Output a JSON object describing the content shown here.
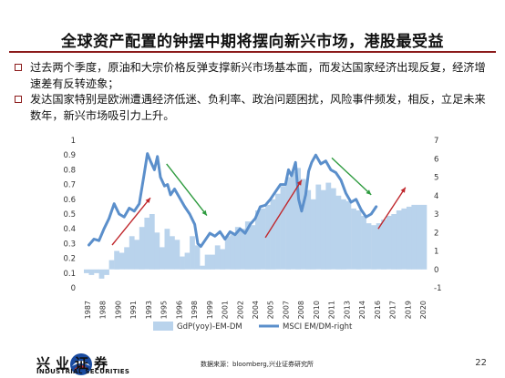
{
  "slide": {
    "title": "全球资产配置的钟摆中期将摆向新兴市场，港股最受益",
    "bullets": [
      "过去两个季度，原油和大宗价格反弹支撑新兴市场基本面，而发达国家经济出现反复，经济增速差有反转迹象；",
      "发达国家特别是欧洲遭遇经济低迷、负利率、政治问题困扰，风险事件频发，相反，立足未来数年，新兴市场吸引力上升。"
    ],
    "source": "数据来源：bloomberg,兴业证券研究所",
    "page_number": "22",
    "logo_cn": "兴业证券",
    "logo_en": "INDUSTRIAL SECURITIES"
  },
  "colors": {
    "accent": "#8b1a1a",
    "area": "#b9d3ec",
    "line": "#5b8fcb",
    "arrow_up": "#c0282d",
    "arrow_down": "#2e9b3f"
  },
  "chart_data": {
    "type": "area+line",
    "x_ticks": [
      "1987",
      "1988",
      "1990",
      "1991",
      "1993",
      "1995",
      "1996",
      "1998",
      "1999",
      "2001",
      "2002",
      "2004",
      "2005",
      "2007",
      "2008",
      "2010",
      "2011",
      "2013",
      "2014",
      "2016",
      "2017",
      "2019",
      "2020"
    ],
    "x_range": [
      1987,
      2021
    ],
    "y_left": {
      "min": 0,
      "max": 1.0,
      "ticks": [
        "0",
        "0.1",
        "0.2",
        "0.3",
        "0.4",
        "0.5",
        "0.6",
        "0.7",
        "0.8",
        "0.9",
        "1"
      ]
    },
    "y_right": {
      "min": -1,
      "max": 7,
      "ticks": [
        "-1",
        "0",
        "1",
        "2",
        "3",
        "4",
        "5",
        "6",
        "7"
      ]
    },
    "series": [
      {
        "name": "GdP(yoy)-EM-DM",
        "kind": "area",
        "axis": "right",
        "x": [
          1987,
          1987.5,
          1988,
          1988.5,
          1989,
          1989.5,
          1990,
          1990.5,
          1991,
          1991.5,
          1992,
          1992.5,
          1993,
          1993.5,
          1994,
          1994.5,
          1995,
          1995.5,
          1996,
          1996.5,
          1997,
          1997.5,
          1998,
          1998.5,
          1999,
          1999.5,
          2000,
          2000.5,
          2001,
          2001.5,
          2002,
          2002.5,
          2003,
          2003.5,
          2004,
          2004.5,
          2005,
          2005.5,
          2006,
          2006.5,
          2007,
          2007.5,
          2008,
          2008.5,
          2009,
          2009.5,
          2010,
          2010.5,
          2011,
          2011.5,
          2012,
          2012.5,
          2013,
          2013.5,
          2014,
          2014.5,
          2015,
          2015.5,
          2016,
          2016.5,
          2017,
          2017.5,
          2018,
          2018.5,
          2019,
          2019.5,
          2020,
          2020.5
        ],
        "values": [
          -0.2,
          -0.3,
          -0.2,
          -0.5,
          -0.3,
          0.5,
          1.0,
          0.9,
          1.2,
          1.8,
          1.6,
          2.3,
          2.8,
          3.0,
          2.0,
          1.2,
          2.2,
          1.8,
          1.6,
          0.7,
          0.9,
          1.8,
          1.3,
          0.2,
          0.8,
          0.8,
          1.3,
          1.1,
          1.8,
          1.9,
          2.3,
          2.2,
          2.6,
          2.4,
          3.2,
          3.3,
          3.5,
          3.8,
          4.1,
          4.5,
          5.0,
          5.3,
          5.5,
          4.9,
          4.3,
          3.8,
          4.6,
          4.3,
          4.7,
          4.4,
          4.0,
          3.8,
          3.7,
          3.3,
          3.2,
          2.9,
          2.5,
          2.4,
          2.5,
          2.7,
          2.9,
          3.0,
          3.2,
          3.3,
          3.4,
          3.5,
          3.5,
          3.5
        ]
      },
      {
        "name": "MSCI EM/DM-right",
        "kind": "line",
        "axis": "left",
        "x": [
          1987.5,
          1988,
          1988.5,
          1989,
          1989.5,
          1990,
          1990.5,
          1991,
          1991.5,
          1992,
          1992.5,
          1993,
          1993.3,
          1993.6,
          1994,
          1994.3,
          1994.6,
          1995,
          1995.3,
          1995.6,
          1996,
          1996.5,
          1997,
          1997.5,
          1998,
          1998.3,
          1998.6,
          1999,
          1999.5,
          2000,
          2000.5,
          2001,
          2001.5,
          2002,
          2002.5,
          2003,
          2003.5,
          2004,
          2004.5,
          2005,
          2005.5,
          2006,
          2006.5,
          2007,
          2007.3,
          2007.6,
          2008,
          2008.3,
          2008.6,
          2009,
          2009.3,
          2009.6,
          2010,
          2010.5,
          2011,
          2011.5,
          2012,
          2012.5,
          2013,
          2013.5,
          2014,
          2014.5,
          2015,
          2015.5,
          2016
        ],
        "values": [
          0.29,
          0.33,
          0.32,
          0.4,
          0.47,
          0.57,
          0.5,
          0.48,
          0.54,
          0.52,
          0.57,
          0.78,
          0.91,
          0.86,
          0.8,
          0.89,
          0.75,
          0.69,
          0.7,
          0.63,
          0.67,
          0.61,
          0.55,
          0.5,
          0.43,
          0.3,
          0.28,
          0.32,
          0.37,
          0.35,
          0.38,
          0.33,
          0.38,
          0.36,
          0.4,
          0.37,
          0.43,
          0.47,
          0.55,
          0.56,
          0.6,
          0.65,
          0.7,
          0.7,
          0.8,
          0.76,
          0.85,
          0.6,
          0.52,
          0.63,
          0.79,
          0.85,
          0.9,
          0.84,
          0.86,
          0.8,
          0.78,
          0.73,
          0.64,
          0.58,
          0.6,
          0.53,
          0.48,
          0.5,
          0.55
        ]
      }
    ],
    "arrows": [
      {
        "direction": "up",
        "x0": 1989.8,
        "y0": 0.29,
        "x1": 1993.6,
        "y1": 0.61
      },
      {
        "direction": "down",
        "x0": 1995.2,
        "y0": 0.84,
        "x1": 1999.2,
        "y1": 0.49
      },
      {
        "direction": "up",
        "x0": 2005.0,
        "y0": 0.34,
        "x1": 2008.6,
        "y1": 0.73
      },
      {
        "direction": "down",
        "x0": 2011.6,
        "y0": 0.88,
        "x1": 2015.5,
        "y1": 0.63
      },
      {
        "direction": "up",
        "x0": 2016.2,
        "y0": 0.4,
        "x1": 2018.9,
        "y1": 0.68
      }
    ],
    "legend": {
      "placement": "bottom",
      "entries": [
        "GdP(yoy)-EM-DM",
        "MSCI EM/DM-right"
      ]
    }
  }
}
